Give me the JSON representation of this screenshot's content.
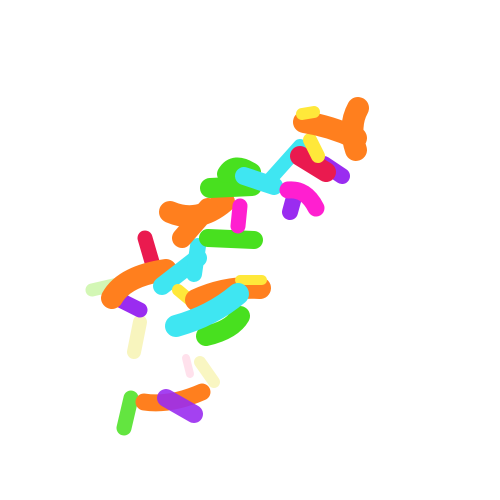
{
  "scene": {
    "kind": "molecular-ribbon-render",
    "background": "#ffffff"
  },
  "palette": {
    "orange": "#ff7f1e",
    "red": "#ea1a4f",
    "magenta": "#ff1fd0",
    "purple": "#9a2cf0",
    "cyan": "#3fe6f2",
    "green": "#48e01f",
    "lime": "#9dee5c",
    "yellow": "#ffe83a",
    "paleYellow": "#f6f2a8",
    "pink": "#ffc9dd"
  }
}
